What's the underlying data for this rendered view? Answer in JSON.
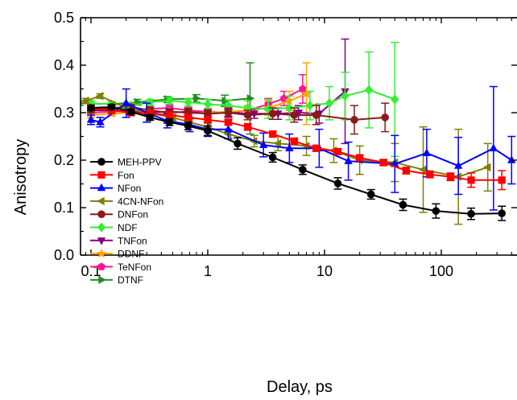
{
  "chart_data": {
    "type": "line",
    "xlabel": "Delay, ps",
    "ylabel": "Anisotropy",
    "x_scale": "log",
    "xlim": [
      0.08,
      400
    ],
    "ylim": [
      0.0,
      0.5
    ],
    "x_ticks": [
      {
        "value": 0.1,
        "label": "0.1"
      },
      {
        "value": 1,
        "label": "1"
      },
      {
        "value": 10,
        "label": "10"
      },
      {
        "value": 100,
        "label": "100"
      }
    ],
    "y_ticks": [
      {
        "value": 0.0,
        "label": "0.0"
      },
      {
        "value": 0.1,
        "label": "0.1"
      },
      {
        "value": 0.2,
        "label": "0.2"
      },
      {
        "value": 0.3,
        "label": "0.3"
      },
      {
        "value": 0.4,
        "label": "0.4"
      },
      {
        "value": 0.5,
        "label": "0.5"
      }
    ],
    "legend_position": "bottom-left",
    "series": [
      {
        "name": "MEH-PPV",
        "color": "#000000",
        "marker": "circle",
        "x": [
          0.1,
          0.15,
          0.22,
          0.32,
          0.47,
          0.68,
          1.0,
          1.8,
          3.6,
          6.5,
          13,
          25,
          47,
          90,
          180,
          330
        ],
        "y": [
          0.31,
          0.312,
          0.302,
          0.29,
          0.28,
          0.272,
          0.262,
          0.235,
          0.206,
          0.18,
          0.151,
          0.128,
          0.106,
          0.093,
          0.087,
          0.088
        ],
        "err": [
          0.005,
          0.005,
          0.005,
          0.006,
          0.007,
          0.008,
          0.01,
          0.012,
          0.01,
          0.01,
          0.012,
          0.01,
          0.012,
          0.015,
          0.012,
          0.015
        ]
      },
      {
        "name": "Fon",
        "color": "#ff0000",
        "marker": "square",
        "x": [
          0.1,
          0.15,
          0.22,
          0.32,
          0.47,
          0.68,
          1.0,
          1.5,
          2.2,
          3.6,
          5.5,
          8.5,
          13,
          20,
          32,
          50,
          80,
          120,
          180,
          330
        ],
        "y": [
          0.31,
          0.305,
          0.3,
          0.298,
          0.295,
          0.29,
          0.285,
          0.28,
          0.27,
          0.255,
          0.24,
          0.225,
          0.218,
          0.205,
          0.195,
          0.178,
          0.17,
          0.165,
          0.158,
          0.158
        ],
        "err": [
          0.005,
          0.005,
          0.005,
          0.005,
          0.005,
          0.005,
          0.006,
          0.006,
          0.007,
          0.006,
          0.006,
          0.006,
          0.006,
          0.006,
          0.006,
          0.007,
          0.007,
          0.008,
          0.015,
          0.02
        ]
      },
      {
        "name": "NFon",
        "color": "#0000ff",
        "marker": "triangle-up",
        "x": [
          0.1,
          0.12,
          0.2,
          0.3,
          0.45,
          0.7,
          1.0,
          1.5,
          3.0,
          5.0,
          9.0,
          16,
          40,
          75,
          140,
          280,
          400
        ],
        "y": [
          0.285,
          0.28,
          0.32,
          0.3,
          0.283,
          0.275,
          0.265,
          0.265,
          0.232,
          0.225,
          0.225,
          0.198,
          0.192,
          0.215,
          0.188,
          0.225,
          0.2
        ],
        "err": [
          0.01,
          0.01,
          0.03,
          0.02,
          0.015,
          0.015,
          0.015,
          0.02,
          0.025,
          0.03,
          0.04,
          0.04,
          0.06,
          0.05,
          0.06,
          0.13,
          0.05
        ]
      },
      {
        "name": "4CN-NFon",
        "color": "#808000",
        "marker": "triangle-left",
        "x": [
          0.09,
          0.12,
          0.2,
          0.3,
          0.5,
          0.7,
          1.0,
          1.5,
          2.5,
          4.0,
          7.0,
          12,
          20,
          40,
          70,
          140,
          250
        ],
        "y": [
          0.325,
          0.335,
          0.31,
          0.3,
          0.29,
          0.28,
          0.27,
          0.255,
          0.24,
          0.235,
          0.23,
          0.22,
          0.2,
          0.195,
          0.18,
          0.165,
          0.185
        ],
        "err": [
          0.005,
          0.005,
          0.006,
          0.006,
          0.006,
          0.007,
          0.008,
          0.01,
          0.012,
          0.015,
          0.02,
          0.025,
          0.03,
          0.04,
          0.09,
          0.1,
          0.05
        ]
      },
      {
        "name": "DNFon",
        "color": "#8b1a1a",
        "marker": "circle",
        "x": [
          0.1,
          0.15,
          0.22,
          0.32,
          0.47,
          0.68,
          1.0,
          1.5,
          2.2,
          3.6,
          5.5,
          8.5,
          18,
          33
        ],
        "y": [
          0.305,
          0.31,
          0.312,
          0.305,
          0.3,
          0.302,
          0.298,
          0.3,
          0.295,
          0.298,
          0.295,
          0.295,
          0.285,
          0.29
        ],
        "err": [
          0.005,
          0.005,
          0.005,
          0.006,
          0.006,
          0.007,
          0.008,
          0.01,
          0.01,
          0.012,
          0.015,
          0.02,
          0.03,
          0.03
        ]
      },
      {
        "name": "NDF",
        "color": "#33ee33",
        "marker": "diamond",
        "x": [
          0.1,
          0.15,
          0.22,
          0.32,
          0.47,
          0.68,
          1.0,
          1.5,
          2.2,
          3.3,
          5.0,
          7.5,
          11,
          15,
          24,
          40
        ],
        "y": [
          0.32,
          0.318,
          0.315,
          0.322,
          0.325,
          0.322,
          0.318,
          0.315,
          0.31,
          0.308,
          0.31,
          0.315,
          0.32,
          0.335,
          0.348,
          0.328
        ],
        "err": [
          0.005,
          0.005,
          0.005,
          0.006,
          0.007,
          0.008,
          0.01,
          0.012,
          0.015,
          0.02,
          0.025,
          0.03,
          0.035,
          0.05,
          0.08,
          0.12
        ]
      },
      {
        "name": "TNFon",
        "color": "#800080",
        "marker": "triangle-down",
        "x": [
          0.1,
          0.15,
          0.22,
          0.32,
          0.47,
          0.68,
          1.0,
          1.5,
          2.5,
          4.0,
          6.0,
          9.0,
          15
        ],
        "y": [
          0.305,
          0.305,
          0.302,
          0.3,
          0.302,
          0.3,
          0.298,
          0.3,
          0.298,
          0.298,
          0.3,
          0.298,
          0.345
        ],
        "err": [
          0.005,
          0.005,
          0.005,
          0.005,
          0.006,
          0.006,
          0.007,
          0.008,
          0.01,
          0.012,
          0.015,
          0.02,
          0.11
        ]
      },
      {
        "name": "DDNF",
        "color": "#ffa500",
        "marker": "star",
        "x": [
          0.1,
          0.15,
          0.22,
          0.32,
          0.47,
          0.68,
          1.0,
          1.5,
          2.2,
          3.3,
          5.0,
          7.0
        ],
        "y": [
          0.295,
          0.298,
          0.3,
          0.302,
          0.302,
          0.3,
          0.3,
          0.302,
          0.305,
          0.31,
          0.325,
          0.34
        ],
        "err": [
          0.005,
          0.005,
          0.005,
          0.005,
          0.006,
          0.006,
          0.007,
          0.008,
          0.01,
          0.015,
          0.02,
          0.065
        ]
      },
      {
        "name": "TeNFon",
        "color": "#ff1493",
        "marker": "pentagon",
        "x": [
          0.1,
          0.15,
          0.22,
          0.32,
          0.47,
          0.68,
          1.0,
          1.5,
          2.2,
          3.3,
          4.5,
          6.5
        ],
        "y": [
          0.3,
          0.302,
          0.305,
          0.308,
          0.31,
          0.305,
          0.302,
          0.3,
          0.305,
          0.318,
          0.33,
          0.35
        ],
        "err": [
          0.005,
          0.005,
          0.005,
          0.005,
          0.006,
          0.006,
          0.007,
          0.008,
          0.01,
          0.012,
          0.015,
          0.03
        ]
      },
      {
        "name": "DTNF",
        "color": "#228b22",
        "marker": "triangle-right",
        "x": [
          0.08,
          0.15,
          0.25,
          0.45,
          0.8,
          1.4,
          2.3
        ],
        "y": [
          0.32,
          0.318,
          0.322,
          0.328,
          0.33,
          0.325,
          0.33
        ],
        "err": [
          0.005,
          0.005,
          0.006,
          0.006,
          0.008,
          0.012,
          0.075
        ]
      }
    ]
  }
}
